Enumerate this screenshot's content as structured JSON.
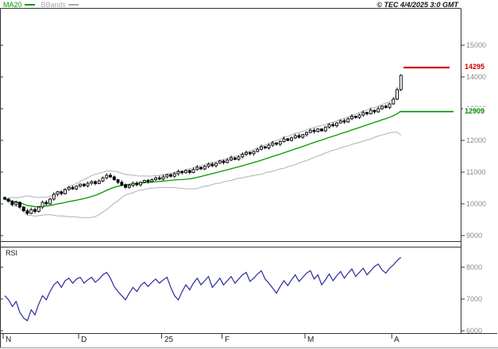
{
  "header": {
    "legend": [
      {
        "label": "MA20",
        "color": "#009900"
      },
      {
        "label": "BBands",
        "color": "#aaaaaa"
      }
    ],
    "copyright": "© TEC 4/4/2025 3:0 GMT"
  },
  "chart_data": {
    "type": "candlestick",
    "title": "",
    "rsi_label": "RSI",
    "x_axis": {
      "tick_labels": [
        "N",
        "D",
        "25",
        "F",
        "M",
        "A"
      ],
      "tick_indices": [
        0,
        20,
        42,
        58,
        80,
        103
      ]
    },
    "y_axis": {
      "scale": "linear",
      "ticks": [
        15000,
        14000,
        13000,
        12000,
        11000,
        10000,
        9000,
        8000,
        7000,
        6000
      ],
      "min": 6000,
      "max": 15000
    },
    "series": {
      "candles": {
        "first_open": 10200,
        "closes": [
          10150,
          10080,
          9980,
          10050,
          9900,
          9780,
          9700,
          9820,
          9760,
          9900,
          10050,
          10000,
          10150,
          10300,
          10380,
          10320,
          10450,
          10520,
          10470,
          10560,
          10620,
          10570,
          10650,
          10700,
          10640,
          10720,
          10820,
          10900,
          10850,
          10760,
          10680,
          10600,
          10520,
          10580,
          10650,
          10600,
          10680,
          10740,
          10700,
          10760,
          10820,
          10780,
          10850,
          10920,
          10870,
          10950,
          11020,
          10980,
          11050,
          10990,
          11080,
          11150,
          11100,
          11180,
          11250,
          11200,
          11280,
          11350,
          11300,
          11380,
          11450,
          11400,
          11480,
          11560,
          11620,
          11580,
          11650,
          11720,
          11800,
          11760,
          11850,
          11920,
          11880,
          11960,
          12050,
          12000,
          12080,
          12150,
          12100,
          12180,
          12250,
          12320,
          12280,
          12360,
          12300,
          12420,
          12500,
          12460,
          12550,
          12620,
          12580,
          12680,
          12760,
          12720,
          12800,
          12880,
          12840,
          12950,
          12900,
          13000,
          13080,
          13040,
          13150,
          13300,
          13600,
          14050
        ]
      },
      "rsi": [
        45,
        40,
        32,
        38,
        25,
        18,
        15,
        28,
        22,
        35,
        45,
        40,
        50,
        58,
        62,
        55,
        63,
        66,
        60,
        65,
        67,
        60,
        64,
        67,
        61,
        65,
        70,
        73,
        66,
        56,
        50,
        45,
        40,
        48,
        55,
        50,
        57,
        61,
        56,
        61,
        65,
        60,
        64,
        67,
        55,
        45,
        40,
        50,
        58,
        52,
        60,
        66,
        58,
        63,
        68,
        55,
        60,
        66,
        58,
        63,
        68,
        60,
        65,
        70,
        73,
        62,
        66,
        71,
        75,
        65,
        60,
        54,
        48,
        56,
        63,
        57,
        64,
        70,
        62,
        67,
        72,
        75,
        65,
        70,
        58,
        64,
        71,
        63,
        69,
        74,
        66,
        72,
        77,
        68,
        73,
        78,
        70,
        75,
        80,
        83,
        76,
        72,
        78,
        82,
        87,
        91
      ]
    },
    "indicators": [
      {
        "name": "MA20",
        "type": "sma",
        "window": 20
      },
      {
        "name": "BBands",
        "type": "bollinger",
        "window": 20,
        "stddev": 2
      },
      {
        "name": "RSI",
        "type": "rsi"
      }
    ],
    "levels": {
      "resistance": {
        "value": 14295,
        "label": "14295",
        "color": "#cc0000"
      },
      "support": {
        "value": 12909,
        "label": "12909",
        "color": "#008800"
      }
    }
  },
  "colors": {
    "ma20": "#009900",
    "bbands": "#b0b0b0",
    "rsi": "#2a2a9e",
    "up_candle": "#ffffff",
    "down_candle": "#000000",
    "candle_outline": "#000000",
    "frame": "#333333",
    "axis_text": "#8a8a8a"
  }
}
